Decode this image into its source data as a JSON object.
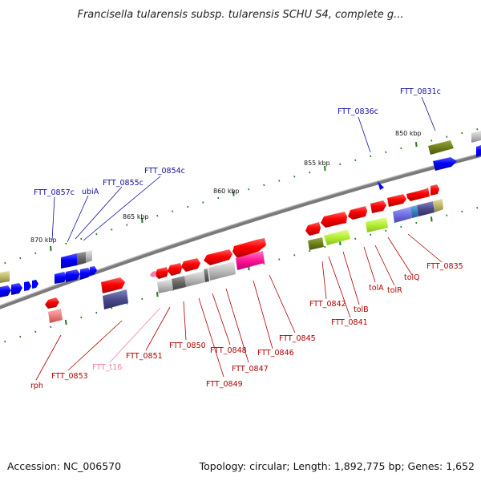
{
  "title": "Francisella tularensis subsp. tularensis SCHU S4, complete g...",
  "footer": {
    "accession": "Accession: NC_006570",
    "summary": "Topology: circular; Length: 1,892,775 bp; Genes: 1,652"
  },
  "ruler": {
    "labels": [
      "850 kbp",
      "855 kbp",
      "860 kbp",
      "865 kbp",
      "870 kbp"
    ]
  },
  "genes_top": {
    "labels": [
      "FTT_0831c",
      "FTT_0836c",
      "FTT_0854c",
      "FTT_0855c",
      "ubiA",
      "FTT_0857c"
    ]
  },
  "genes_bottom": {
    "labels": [
      "FTT_0835",
      "tolQ",
      "tolR",
      "tolA",
      "tolB",
      "FTT_0841",
      "FTT_0842",
      "FTT_0845",
      "FTT_0846",
      "FTT_0847",
      "FTT_0848",
      "FTT_0849",
      "FTT_0850",
      "FTT_0851",
      "FTT_t16",
      "FTT_0853",
      "rph"
    ]
  },
  "colors": {
    "backbone": "#7f7f7f",
    "label_top": "#1010a0",
    "label_bottom": "#b00000",
    "trna": "#f07fa8",
    "tick": "#1e7a1e"
  }
}
